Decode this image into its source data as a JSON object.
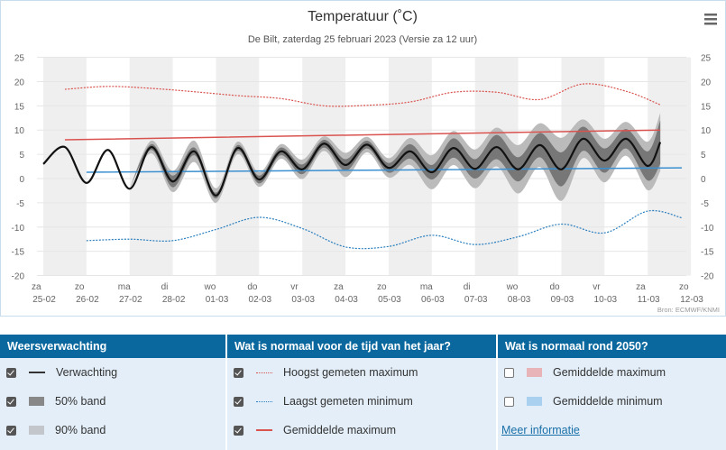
{
  "menu_icon": "hamburger-menu-icon",
  "colors": {
    "forecast": "#111111",
    "band50": "#777777",
    "band90": "#bbbbbb",
    "record_max": "#d9534f",
    "record_min": "#2a7fbf",
    "avg_max": "#d9534f",
    "avg_min": "#3a8fd0",
    "avg_max_2050": "#e8b4b8",
    "avg_min_2050": "#a9d0ee",
    "header_bg": "#0b689e",
    "legend_bg": "#e3eef8",
    "day_shade": "#efefef"
  },
  "chart_data": {
    "type": "line",
    "title": "Temperatuur (˚C)",
    "subtitle": "De Bilt, zaterdag 25 februari 2023 (Versie za 12 uur)",
    "credits": "Bron: ECMWF/KNMI",
    "ylim": [
      -20,
      25
    ],
    "yticks": [
      25,
      20,
      15,
      10,
      5,
      0,
      -5,
      -10,
      -15,
      -20
    ],
    "grid": true,
    "alternating_day_shading": true,
    "categories": [
      {
        "day": "za",
        "date": "25-02"
      },
      {
        "day": "zo",
        "date": "26-02"
      },
      {
        "day": "ma",
        "date": "27-02"
      },
      {
        "day": "di",
        "date": "28-02"
      },
      {
        "day": "wo",
        "date": "01-03"
      },
      {
        "day": "do",
        "date": "02-03"
      },
      {
        "day": "vr",
        "date": "03-03"
      },
      {
        "day": "za",
        "date": "04-03"
      },
      {
        "day": "zo",
        "date": "05-03"
      },
      {
        "day": "ma",
        "date": "06-03"
      },
      {
        "day": "di",
        "date": "07-03"
      },
      {
        "day": "wo",
        "date": "08-03"
      },
      {
        "day": "do",
        "date": "09-03"
      },
      {
        "day": "vr",
        "date": "10-03"
      },
      {
        "day": "za",
        "date": "11-03"
      },
      {
        "day": "zo",
        "date": "12-03"
      }
    ],
    "x_start": "2023-02-25T00:00",
    "forecast": [
      [
        "2023-02-25T00:00",
        3.0
      ],
      [
        "2023-02-25T12:00",
        6.5
      ],
      [
        "2023-02-26T00:00",
        -0.9
      ],
      [
        "2023-02-26T12:00",
        5.9
      ],
      [
        "2023-02-27T00:00",
        -2.1
      ],
      [
        "2023-02-27T12:00",
        6.5
      ],
      [
        "2023-02-28T00:00",
        -0.6
      ],
      [
        "2023-02-28T12:00",
        5.6
      ],
      [
        "2023-03-01T00:00",
        -3.5
      ],
      [
        "2023-03-01T12:00",
        6.3
      ],
      [
        "2023-03-02T00:00",
        -0.2
      ],
      [
        "2023-03-02T12:00",
        5.6
      ],
      [
        "2023-03-03T00:00",
        1.9
      ],
      [
        "2023-03-03T12:00",
        7.2
      ],
      [
        "2023-03-04T00:00",
        2.8
      ],
      [
        "2023-03-04T12:00",
        7.0
      ],
      [
        "2023-03-05T00:00",
        2.2
      ],
      [
        "2023-03-05T12:00",
        5.6
      ],
      [
        "2023-03-06T00:00",
        1.3
      ],
      [
        "2023-03-06T12:00",
        6.3
      ],
      [
        "2023-03-07T00:00",
        2.0
      ],
      [
        "2023-03-07T12:00",
        6.5
      ],
      [
        "2023-03-08T00:00",
        1.9
      ],
      [
        "2023-03-08T12:00",
        6.9
      ],
      [
        "2023-03-09T00:00",
        1.9
      ],
      [
        "2023-03-09T12:00",
        8.2
      ],
      [
        "2023-03-10T00:00",
        3.7
      ],
      [
        "2023-03-10T12:00",
        8.2
      ],
      [
        "2023-03-11T00:00",
        2.6
      ],
      [
        "2023-03-11T07:00",
        7.5
      ]
    ],
    "band50": [
      [
        "2023-02-27T00:00",
        -2.1,
        -2.1
      ],
      [
        "2023-02-27T12:00",
        5.9,
        7.1
      ],
      [
        "2023-02-28T00:00",
        -1.8,
        0.6
      ],
      [
        "2023-02-28T12:00",
        4.8,
        6.4
      ],
      [
        "2023-03-01T00:00",
        -4.1,
        -2.9
      ],
      [
        "2023-03-01T12:00",
        5.7,
        6.9
      ],
      [
        "2023-03-02T00:00",
        -1.0,
        0.6
      ],
      [
        "2023-03-02T12:00",
        4.8,
        6.4
      ],
      [
        "2023-03-03T00:00",
        0.9,
        2.9
      ],
      [
        "2023-03-03T12:00",
        6.4,
        8.0
      ],
      [
        "2023-03-04T00:00",
        1.6,
        4.0
      ],
      [
        "2023-03-04T12:00",
        6.2,
        7.8
      ],
      [
        "2023-03-05T00:00",
        1.2,
        3.2
      ],
      [
        "2023-03-05T12:00",
        4.1,
        7.1
      ],
      [
        "2023-03-06T00:00",
        -0.2,
        2.8
      ],
      [
        "2023-03-06T12:00",
        4.3,
        8.3
      ],
      [
        "2023-03-07T00:00",
        0.0,
        4.0
      ],
      [
        "2023-03-07T12:00",
        4.0,
        9.0
      ],
      [
        "2023-03-08T00:00",
        -0.6,
        4.4
      ],
      [
        "2023-03-08T12:00",
        4.4,
        9.4
      ],
      [
        "2023-03-09T00:00",
        -1.6,
        5.4
      ],
      [
        "2023-03-09T12:00",
        5.7,
        10.7
      ],
      [
        "2023-03-10T00:00",
        1.2,
        6.2
      ],
      [
        "2023-03-10T12:00",
        6.2,
        10.2
      ],
      [
        "2023-03-11T00:00",
        -0.4,
        5.6
      ],
      [
        "2023-03-11T07:00",
        3.0,
        12.0
      ]
    ],
    "band90": [
      [
        "2023-02-27T00:00",
        -2.1,
        -2.1
      ],
      [
        "2023-02-27T12:00",
        5.2,
        7.8
      ],
      [
        "2023-02-28T00:00",
        -2.8,
        1.6
      ],
      [
        "2023-02-28T12:00",
        3.4,
        7.8
      ],
      [
        "2023-03-01T00:00",
        -5.0,
        -2.0
      ],
      [
        "2023-03-01T12:00",
        5.0,
        7.6
      ],
      [
        "2023-03-02T00:00",
        -1.7,
        1.3
      ],
      [
        "2023-03-02T12:00",
        4.1,
        7.1
      ],
      [
        "2023-03-03T00:00",
        -0.1,
        3.9
      ],
      [
        "2023-03-03T12:00",
        5.7,
        8.7
      ],
      [
        "2023-03-04T00:00",
        0.3,
        5.3
      ],
      [
        "2023-03-04T12:00",
        5.4,
        8.6
      ],
      [
        "2023-03-05T00:00",
        0.2,
        4.2
      ],
      [
        "2023-03-05T12:00",
        2.8,
        8.4
      ],
      [
        "2023-03-06T00:00",
        -2.2,
        4.8
      ],
      [
        "2023-03-06T12:00",
        2.8,
        9.8
      ],
      [
        "2023-03-07T00:00",
        -2.0,
        6.0
      ],
      [
        "2023-03-07T12:00",
        2.5,
        10.5
      ],
      [
        "2023-03-08T00:00",
        -3.1,
        6.9
      ],
      [
        "2023-03-08T12:00",
        2.4,
        11.4
      ],
      [
        "2023-03-09T00:00",
        -4.6,
        8.4
      ],
      [
        "2023-03-09T12:00",
        4.2,
        12.2
      ],
      [
        "2023-03-10T00:00",
        -0.8,
        8.2
      ],
      [
        "2023-03-10T12:00",
        4.7,
        11.7
      ],
      [
        "2023-03-11T00:00",
        -2.4,
        7.6
      ],
      [
        "2023-03-11T07:00",
        1.5,
        13.5
      ]
    ],
    "record_max": [
      [
        "2023-02-25T12:00",
        18.4
      ],
      [
        "2023-02-26T12:00",
        19.0
      ],
      [
        "2023-02-27T12:00",
        18.6
      ],
      [
        "2023-02-28T12:00",
        17.9
      ],
      [
        "2023-03-01T12:00",
        17.1
      ],
      [
        "2023-03-02T12:00",
        16.5
      ],
      [
        "2023-03-03T12:00",
        15.0
      ],
      [
        "2023-03-04T12:00",
        15.1
      ],
      [
        "2023-03-05T12:00",
        15.8
      ],
      [
        "2023-03-06T12:00",
        17.8
      ],
      [
        "2023-03-07T12:00",
        17.8
      ],
      [
        "2023-03-08T12:00",
        16.3
      ],
      [
        "2023-03-09T12:00",
        19.5
      ],
      [
        "2023-03-10T12:00",
        18.0
      ],
      [
        "2023-03-11T07:00",
        15.2
      ]
    ],
    "record_min": [
      [
        "2023-02-26T00:00",
        -12.8
      ],
      [
        "2023-02-27T00:00",
        -12.5
      ],
      [
        "2023-02-28T00:00",
        -12.8
      ],
      [
        "2023-03-01T00:00",
        -10.5
      ],
      [
        "2023-03-02T00:00",
        -8.0
      ],
      [
        "2023-03-03T00:00",
        -10.3
      ],
      [
        "2023-03-04T00:00",
        -14.1
      ],
      [
        "2023-03-05T00:00",
        -14.0
      ],
      [
        "2023-03-06T00:00",
        -11.7
      ],
      [
        "2023-03-07T00:00",
        -13.6
      ],
      [
        "2023-03-08T00:00",
        -12.0
      ],
      [
        "2023-03-09T00:00",
        -9.4
      ],
      [
        "2023-03-10T00:00",
        -11.2
      ],
      [
        "2023-03-11T00:00",
        -6.7
      ],
      [
        "2023-03-11T19:00",
        -8.1
      ]
    ],
    "avg_max": [
      [
        "2023-02-25T12:00",
        8.0
      ],
      [
        "2023-03-11T07:00",
        10.0
      ]
    ],
    "avg_min": [
      [
        "2023-02-26T00:00",
        1.3
      ],
      [
        "2023-03-11T19:00",
        2.2
      ]
    ]
  },
  "legend": {
    "columns": [
      {
        "title": "Weersverwachting",
        "items": [
          {
            "label": "Verwachting",
            "checked": true
          },
          {
            "label": "50% band",
            "checked": true
          },
          {
            "label": "90% band",
            "checked": true
          }
        ]
      },
      {
        "title": "Wat is normaal voor de tijd van het jaar?",
        "items": [
          {
            "label": "Hoogst gemeten maximum",
            "checked": true
          },
          {
            "label": "Laagst gemeten minimum",
            "checked": true
          },
          {
            "label": "Gemiddelde maximum",
            "checked": true
          }
        ]
      },
      {
        "title": "Wat is normaal rond 2050?",
        "items": [
          {
            "label": "Gemiddelde maximum",
            "checked": false
          },
          {
            "label": "Gemiddelde minimum",
            "checked": false
          }
        ],
        "link": "Meer informatie"
      }
    ]
  }
}
